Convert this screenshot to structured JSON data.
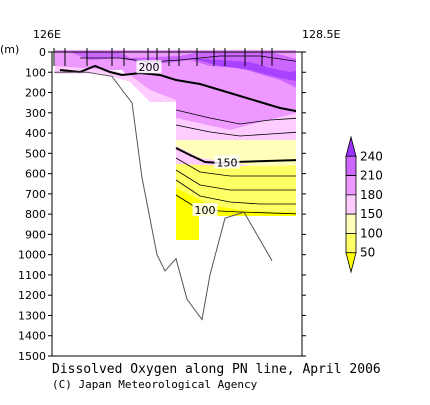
{
  "chart_data": {
    "type": "contour",
    "title": "Dissolved Oxygen along PN line, April 2006",
    "credit": "(C) Japan Meteorological Agency",
    "y_unit_label": "(m)",
    "x_axis": {
      "labels": [
        {
          "lon": 126.0,
          "text": "126E"
        },
        {
          "lon": 128.5,
          "text": "128.5E"
        }
      ],
      "range": [
        126.0,
        128.5
      ]
    },
    "y_axis": {
      "range": [
        0,
        1500
      ],
      "reversed": true,
      "ticks": [
        0,
        100,
        200,
        300,
        400,
        500,
        600,
        700,
        800,
        900,
        1000,
        1100,
        1200,
        1300,
        1400,
        1500
      ]
    },
    "stations_lon": [
      126.02,
      126.13,
      126.35,
      126.6,
      126.72,
      126.96,
      127.05,
      127.17,
      127.27,
      127.45,
      127.62,
      127.73,
      127.93,
      128.1,
      128.2
    ],
    "levels": [
      {
        "min": null,
        "max": 50,
        "color": "#ffff00"
      },
      {
        "min": 50,
        "max": 100,
        "color": "#ffff66"
      },
      {
        "min": 100,
        "max": 150,
        "color": "#ffffbb"
      },
      {
        "min": 150,
        "max": 180,
        "color": "#ffccff"
      },
      {
        "min": 180,
        "max": 210,
        "color": "#ee99ff"
      },
      {
        "min": 210,
        "max": 240,
        "color": "#cc66ff"
      },
      {
        "min": 240,
        "max": null,
        "color": "#9933ff"
      }
    ],
    "colorbar_labels": [
      "50",
      "100",
      "150",
      "180",
      "210",
      "240"
    ],
    "contour_labels": [
      {
        "text": "200",
        "lon": 126.97,
        "depth": 75
      },
      {
        "text": "150",
        "lon": 127.75,
        "depth": 545
      },
      {
        "text": "100",
        "lon": 127.53,
        "depth": 780
      }
    ],
    "bathymetry": [
      {
        "lon": 126.02,
        "depth": 100
      },
      {
        "lon": 126.35,
        "depth": 100
      },
      {
        "lon": 126.6,
        "depth": 120
      },
      {
        "lon": 126.72,
        "depth": 200
      },
      {
        "lon": 126.8,
        "depth": 250
      },
      {
        "lon": 126.9,
        "depth": 620
      },
      {
        "lon": 127.05,
        "depth": 1000
      },
      {
        "lon": 127.13,
        "depth": 1080
      },
      {
        "lon": 127.24,
        "depth": 1020
      },
      {
        "lon": 127.35,
        "depth": 1220
      },
      {
        "lon": 127.5,
        "depth": 1320
      },
      {
        "lon": 127.58,
        "depth": 1100
      },
      {
        "lon": 127.73,
        "depth": 820
      },
      {
        "lon": 127.92,
        "depth": 790
      },
      {
        "lon": 128.2,
        "depth": 1030
      }
    ]
  }
}
